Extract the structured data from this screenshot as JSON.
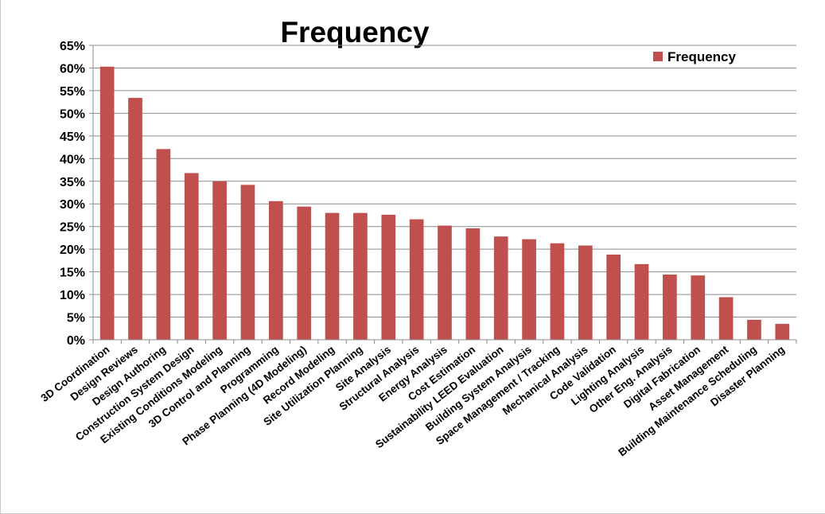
{
  "chart_data": {
    "type": "bar",
    "title": "Frequency",
    "xlabel": "",
    "ylabel": "",
    "ylim": [
      0,
      65
    ],
    "y_tick_step": 5,
    "y_tick_format": "percent",
    "grid": true,
    "legend": "top-right",
    "bar_color": "#c0504d",
    "categories": [
      "3D Coordination",
      "Design Reviews",
      "Design Authoring",
      "Construction System Design",
      "Existing Conditions Modeling",
      "3D Control and Planning",
      "Programming",
      "Phase Planning (4D Modeling)",
      "Record Modeling",
      "Site Utilization Planning",
      "Site Analysis",
      "Structural Analysis",
      "Energy Analysis",
      "Cost Estimation",
      "Sustainability LEED Evaluation",
      "Building System Analysis",
      "Space Management / Tracking",
      "Mechanical Analysis",
      "Code Validation",
      "Lighting Analysis",
      "Other Eng. Analysis",
      "Digital Fabrication",
      "Asset Management",
      "Building Maintenance Scheduling",
      "Disaster Planning"
    ],
    "series": [
      {
        "name": "Frequency",
        "values": [
          60.3,
          53.4,
          42.1,
          36.8,
          35.0,
          34.2,
          30.6,
          29.4,
          28.0,
          28.0,
          27.6,
          26.6,
          25.2,
          24.6,
          22.8,
          22.2,
          21.3,
          20.8,
          18.8,
          16.7,
          14.4,
          14.2,
          9.4,
          4.4,
          3.5
        ]
      }
    ]
  }
}
